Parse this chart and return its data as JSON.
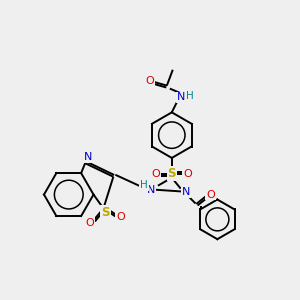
{
  "background_color": "#efefef",
  "atom_colors": {
    "C": "#000000",
    "N": "#0000cc",
    "O": "#dd0000",
    "S": "#bbaa00",
    "H": "#008888"
  },
  "figsize": [
    3.0,
    3.0
  ],
  "dpi": 100
}
